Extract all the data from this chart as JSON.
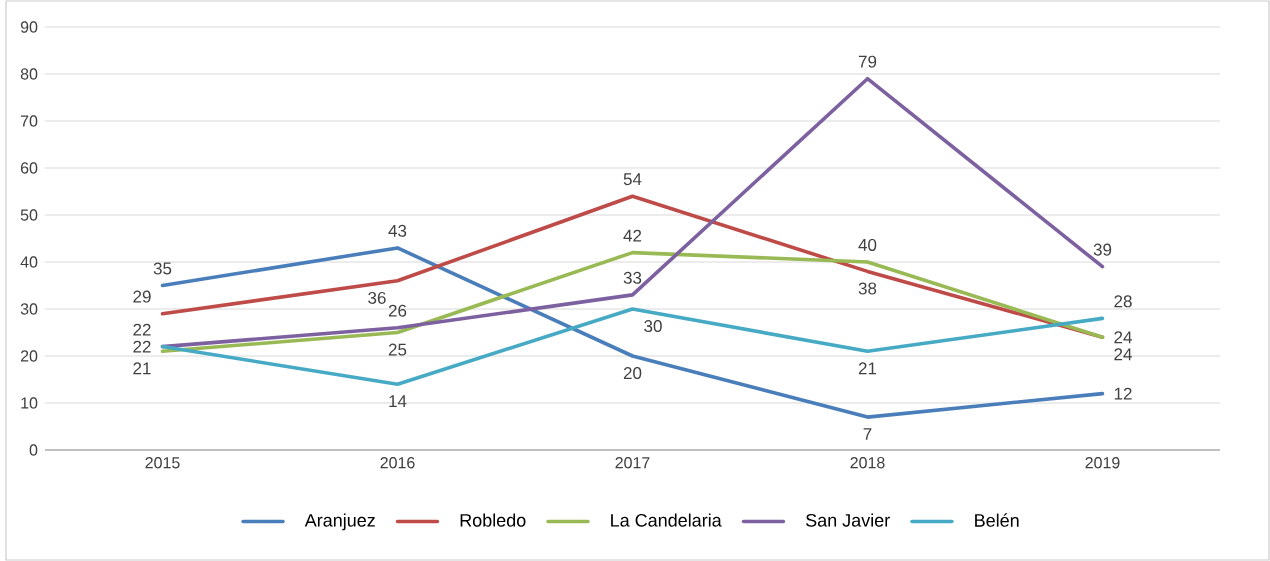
{
  "chart_data": {
    "type": "line",
    "categories": [
      "2015",
      "2016",
      "2017",
      "2018",
      "2019"
    ],
    "series": [
      {
        "name": "Aranjuez",
        "color": "#4a7ebb",
        "values": [
          35,
          43,
          20,
          7,
          12
        ]
      },
      {
        "name": "Robledo",
        "color": "#be4b48",
        "values": [
          29,
          36,
          54,
          38,
          24
        ]
      },
      {
        "name": "La Candelaria",
        "color": "#98b954",
        "values": [
          21,
          25,
          42,
          40,
          24
        ]
      },
      {
        "name": "San Javier",
        "color": "#7d60a0",
        "values": [
          22,
          26,
          33,
          79,
          39
        ]
      },
      {
        "name": "Belén",
        "color": "#46aac5",
        "values": [
          22,
          14,
          30,
          21,
          28
        ]
      }
    ],
    "ylim": [
      0,
      90
    ],
    "yticks": [
      0,
      10,
      20,
      30,
      40,
      50,
      60,
      70,
      80,
      90
    ],
    "grid": "y",
    "legend": "bottom",
    "marker": "none",
    "line_style": "solid",
    "data_labels": true
  }
}
